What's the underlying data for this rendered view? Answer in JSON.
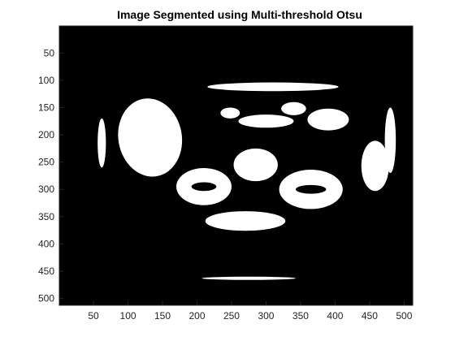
{
  "chart_data": {
    "type": "heatmap",
    "title": "Image Segmented using Multi-threshold Otsu",
    "xlabel": "",
    "ylabel": "",
    "xlim": [
      0.5,
      512.5
    ],
    "ylim": [
      0.5,
      512.5
    ],
    "y_direction": "reverse",
    "x_ticks": [
      50,
      100,
      150,
      200,
      250,
      300,
      350,
      400,
      450,
      500
    ],
    "y_ticks": [
      50,
      100,
      150,
      200,
      250,
      300,
      350,
      400,
      450,
      500
    ],
    "colormap": "binary",
    "background_value": 0,
    "foreground_value": 1,
    "grid": false,
    "regions": [
      {
        "label": "left-large-organ",
        "cx": 132,
        "cy": 205,
        "rx": 46,
        "ry": 72,
        "rotate": -10
      },
      {
        "label": "upper-center-strip",
        "cx": 310,
        "cy": 112,
        "rx": 95,
        "ry": 8,
        "rotate": 0
      },
      {
        "label": "center-bright-a",
        "cx": 248,
        "cy": 160,
        "rx": 14,
        "ry": 10,
        "rotate": 0
      },
      {
        "label": "center-bright-b",
        "cx": 340,
        "cy": 152,
        "rx": 18,
        "ry": 12,
        "rotate": 0
      },
      {
        "label": "center-bright-c",
        "cx": 300,
        "cy": 175,
        "rx": 40,
        "ry": 12,
        "rotate": 0
      },
      {
        "label": "right-upper-organ",
        "cx": 390,
        "cy": 172,
        "rx": 30,
        "ry": 20,
        "rotate": 0
      },
      {
        "label": "spine-body",
        "cx": 285,
        "cy": 255,
        "rx": 32,
        "ry": 30,
        "rotate": 0
      },
      {
        "label": "right-flank",
        "cx": 458,
        "cy": 257,
        "rx": 20,
        "ry": 46,
        "rotate": 0
      },
      {
        "label": "right-body-wall",
        "cx": 480,
        "cy": 210,
        "rx": 8,
        "ry": 60,
        "rotate": 0
      },
      {
        "label": "left-body-wall",
        "cx": 62,
        "cy": 215,
        "rx": 6,
        "ry": 45,
        "rotate": 0
      },
      {
        "label": "lower-band",
        "cx": 270,
        "cy": 358,
        "rx": 58,
        "ry": 18,
        "rotate": 0
      },
      {
        "label": "bottom-thin-arc",
        "cx": 275,
        "cy": 463,
        "rx": 68,
        "ry": 3,
        "rotate": 0
      }
    ],
    "rings": [
      {
        "label": "left-kidney",
        "cx": 210,
        "cy": 295,
        "rx": 40,
        "ry": 34,
        "inner_rx": 18,
        "inner_ry": 8
      },
      {
        "label": "right-kidney",
        "cx": 365,
        "cy": 300,
        "rx": 46,
        "ry": 36,
        "inner_rx": 22,
        "inner_ry": 8
      }
    ]
  }
}
